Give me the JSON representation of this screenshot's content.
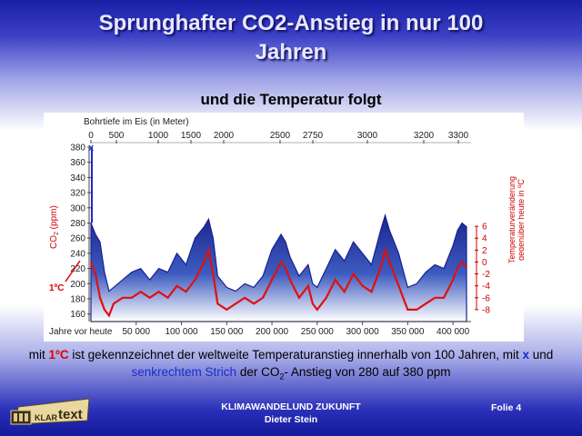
{
  "slide": {
    "title_line1": "Sprunghafter CO2-Anstieg in nur 100",
    "title_line2": "Jahren",
    "subtitle": "und die Temperatur folgt",
    "caption": {
      "p1": "mit ",
      "p2": "1ºC",
      "p3": " ist gekennzeichnet der weltweite Temperaturanstieg innerhalb von 100 Jahren, mit ",
      "p4": "x",
      "p5": " und ",
      "p6": "senkrechtem Strich",
      "p7": " der CO",
      "p8": "2",
      "p9": "- Anstieg von 280 auf 380 ppm"
    },
    "footer": {
      "line1": "KLIMAWANDELUND ZUKUNFT",
      "line2": "Dieter Stein",
      "folie": "Folie 4"
    },
    "logo": {
      "text1": "KLAR",
      "text2": "text"
    },
    "colors": {
      "co2": "#1e2a9e",
      "temperature": "#e01010",
      "background": "#2a30b8"
    }
  },
  "chart_data": {
    "type": "area",
    "top_axis_label": "Bohrtiefe im Eis (in Meter)",
    "top_ticks": [
      "0",
      "500",
      "1000",
      "1500",
      "2000",
      "2500",
      "2750",
      "3000",
      "3200",
      "3300"
    ],
    "xlabel": "Jahre vor heute",
    "x_ticks": [
      "50 000",
      "100 000",
      "150 000",
      "200 000",
      "250 000",
      "300 000",
      "350 000",
      "400 000"
    ],
    "xlim": [
      0,
      420000
    ],
    "ylabel_left": "CO2 (ppm)",
    "ylabel_left_main": "CO",
    "ylabel_left_sub": "2",
    "ylabel_left_unit": " (ppm)",
    "ylim_left": [
      150,
      380
    ],
    "y_ticks_left": [
      380,
      360,
      340,
      320,
      300,
      280,
      260,
      240,
      220,
      200,
      180,
      160
    ],
    "ylabel_right": [
      "Temperaturveränderung",
      "gegenüber heute in ºC"
    ],
    "ylim_right": [
      -10,
      8
    ],
    "y_ticks_right": [
      6,
      4,
      2,
      0,
      -2,
      -4,
      -6,
      -8
    ],
    "annotation": "1ºC",
    "series": [
      {
        "kind": "co2",
        "x": [
          0,
          5000,
          10000,
          15000,
          20000,
          25000,
          35000,
          45000,
          55000,
          65000,
          75000,
          85000,
          95000,
          105000,
          115000,
          125000,
          130000,
          135000,
          140000,
          150000,
          160000,
          170000,
          180000,
          190000,
          200000,
          210000,
          215000,
          220000,
          230000,
          240000,
          245000,
          250000,
          260000,
          270000,
          280000,
          290000,
          300000,
          310000,
          320000,
          325000,
          330000,
          340000,
          350000,
          360000,
          370000,
          380000,
          390000,
          400000,
          405000,
          410000,
          415000
        ],
        "values": [
          280,
          265,
          255,
          215,
          190,
          195,
          205,
          215,
          220,
          205,
          220,
          215,
          240,
          225,
          260,
          275,
          285,
          260,
          210,
          195,
          190,
          200,
          195,
          210,
          245,
          265,
          255,
          235,
          210,
          225,
          200,
          195,
          220,
          245,
          230,
          255,
          240,
          225,
          270,
          290,
          270,
          240,
          195,
          200,
          215,
          225,
          220,
          250,
          270,
          280,
          275
        ]
      },
      {
        "kind": "temperature",
        "x": [
          0,
          5000,
          10000,
          15000,
          20000,
          25000,
          35000,
          45000,
          55000,
          65000,
          75000,
          85000,
          95000,
          105000,
          115000,
          125000,
          130000,
          135000,
          140000,
          150000,
          160000,
          170000,
          180000,
          190000,
          200000,
          210000,
          215000,
          220000,
          230000,
          240000,
          245000,
          250000,
          260000,
          270000,
          280000,
          290000,
          300000,
          310000,
          320000,
          325000,
          330000,
          340000,
          350000,
          360000,
          370000,
          380000,
          390000,
          400000,
          405000,
          410000,
          415000
        ],
        "values": [
          0,
          -2,
          -6,
          -8,
          -9,
          -7,
          -6,
          -6,
          -5,
          -6,
          -5,
          -6,
          -4,
          -5,
          -3,
          0,
          2,
          -2,
          -7,
          -8,
          -7,
          -6,
          -7,
          -6,
          -3,
          0,
          -1,
          -3,
          -6,
          -4,
          -7,
          -8,
          -6,
          -3,
          -5,
          -2,
          -4,
          -5,
          -1,
          2,
          0,
          -4,
          -8,
          -8,
          -7,
          -6,
          -6,
          -3,
          -1,
          0,
          -1
        ]
      }
    ]
  }
}
